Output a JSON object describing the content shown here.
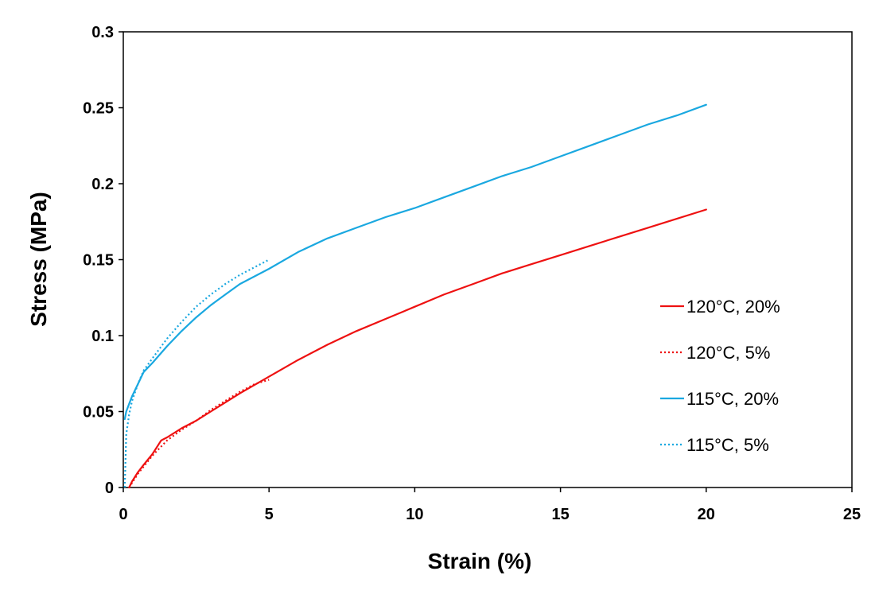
{
  "chart_data": {
    "type": "line",
    "xlabel": "Strain (%)",
    "ylabel": "Stress (MPa)",
    "xlim": [
      0,
      25
    ],
    "ylim": [
      0,
      0.3
    ],
    "xticks": [
      0,
      5,
      10,
      15,
      20,
      25
    ],
    "xtick_labels": [
      "0",
      "5",
      "10",
      "15",
      "20",
      "25"
    ],
    "yticks": [
      0,
      0.05,
      0.1,
      0.15,
      0.2,
      0.25,
      0.3
    ],
    "ytick_labels": [
      "0",
      "0.05",
      "0.1",
      "0.15",
      "0.2",
      "0.25",
      "0.3"
    ],
    "grid": false,
    "legend_position": "right",
    "series": [
      {
        "name": "120°C, 20%",
        "color": "#ee1111",
        "style": "solid",
        "x": [
          0.2,
          0.3,
          0.5,
          0.7,
          1.0,
          1.3,
          1.5,
          2.0,
          2.5,
          3.0,
          4.0,
          5.0,
          6.0,
          7.0,
          8.0,
          9.0,
          10.0,
          11.0,
          12.0,
          13.0,
          14.0,
          15.0,
          16.0,
          17.0,
          18.0,
          19.0,
          20.0
        ],
        "y": [
          0.0,
          0.004,
          0.01,
          0.015,
          0.022,
          0.031,
          0.033,
          0.039,
          0.044,
          0.05,
          0.062,
          0.073,
          0.084,
          0.094,
          0.103,
          0.111,
          0.119,
          0.127,
          0.134,
          0.141,
          0.147,
          0.153,
          0.159,
          0.165,
          0.171,
          0.177,
          0.183
        ]
      },
      {
        "name": "120°C, 5%",
        "color": "#ee1111",
        "style": "dotted",
        "x": [
          0.2,
          0.5,
          1.0,
          1.5,
          2.0,
          2.5,
          3.0,
          3.5,
          4.0,
          4.5,
          5.0
        ],
        "y": [
          0.0,
          0.009,
          0.021,
          0.031,
          0.038,
          0.044,
          0.051,
          0.057,
          0.063,
          0.068,
          0.071
        ]
      },
      {
        "name": "115°C, 20%",
        "color": "#1aa8e0",
        "style": "solid",
        "x": [
          0.05,
          0.1,
          0.2,
          0.3,
          0.5,
          0.7,
          1.0,
          1.5,
          2.0,
          2.5,
          3.0,
          3.5,
          4.0,
          5.0,
          6.0,
          7.0,
          8.0,
          9.0,
          10.0,
          11.0,
          12.0,
          13.0,
          14.0,
          15.0,
          16.0,
          17.0,
          18.0,
          19.0,
          20.0
        ],
        "y": [
          0.045,
          0.05,
          0.055,
          0.06,
          0.068,
          0.076,
          0.082,
          0.093,
          0.103,
          0.112,
          0.12,
          0.127,
          0.134,
          0.144,
          0.155,
          0.164,
          0.171,
          0.178,
          0.184,
          0.191,
          0.198,
          0.205,
          0.211,
          0.218,
          0.225,
          0.232,
          0.239,
          0.245,
          0.252
        ]
      },
      {
        "name": "115°C, 5%",
        "color": "#1aa8e0",
        "style": "dotted",
        "x": [
          0.05,
          0.1,
          0.2,
          0.3,
          0.5,
          0.7,
          1.0,
          1.5,
          2.0,
          2.5,
          3.0,
          3.5,
          4.0,
          4.5,
          5.0
        ],
        "y": [
          0.0,
          0.035,
          0.048,
          0.057,
          0.068,
          0.077,
          0.085,
          0.098,
          0.109,
          0.119,
          0.127,
          0.134,
          0.14,
          0.145,
          0.15
        ]
      }
    ]
  }
}
